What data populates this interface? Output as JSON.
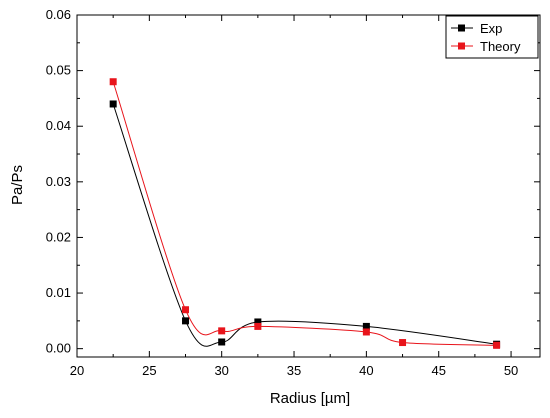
{
  "chart_data": {
    "type": "scatter",
    "title": "",
    "xlabel": "Radius [µm]",
    "ylabel": "Pa/Ps",
    "xlim": [
      20,
      52
    ],
    "ylim": [
      -0.0015,
      0.06
    ],
    "x_ticks": [
      20,
      25,
      30,
      35,
      40,
      45,
      50
    ],
    "x_tick_labels": [
      "20",
      "25",
      "30",
      "35",
      "40",
      "45",
      "50"
    ],
    "y_ticks": [
      0.0,
      0.01,
      0.02,
      0.03,
      0.04,
      0.05,
      0.06
    ],
    "y_tick_labels": [
      "0.00",
      "0.01",
      "0.02",
      "0.03",
      "0.04",
      "0.05",
      "0.06"
    ],
    "grid": false,
    "legend_position": "top-right",
    "series": [
      {
        "name": "Exp",
        "color": "#000000",
        "marker": "square",
        "points": [
          {
            "x": 22.5,
            "y": 0.044
          },
          {
            "x": 27.5,
            "y": 0.005
          },
          {
            "x": 30.0,
            "y": 0.0012
          },
          {
            "x": 32.5,
            "y": 0.0048
          },
          {
            "x": 40.0,
            "y": 0.004
          },
          {
            "x": 49.0,
            "y": 0.0008
          }
        ]
      },
      {
        "name": "Theory",
        "color": "#e8141b",
        "marker": "square",
        "points": [
          {
            "x": 22.5,
            "y": 0.048
          },
          {
            "x": 27.5,
            "y": 0.007
          },
          {
            "x": 30.0,
            "y": 0.0032
          },
          {
            "x": 32.5,
            "y": 0.004
          },
          {
            "x": 40.0,
            "y": 0.003
          },
          {
            "x": 42.5,
            "y": 0.0011
          },
          {
            "x": 49.0,
            "y": 0.0006
          }
        ]
      }
    ]
  }
}
